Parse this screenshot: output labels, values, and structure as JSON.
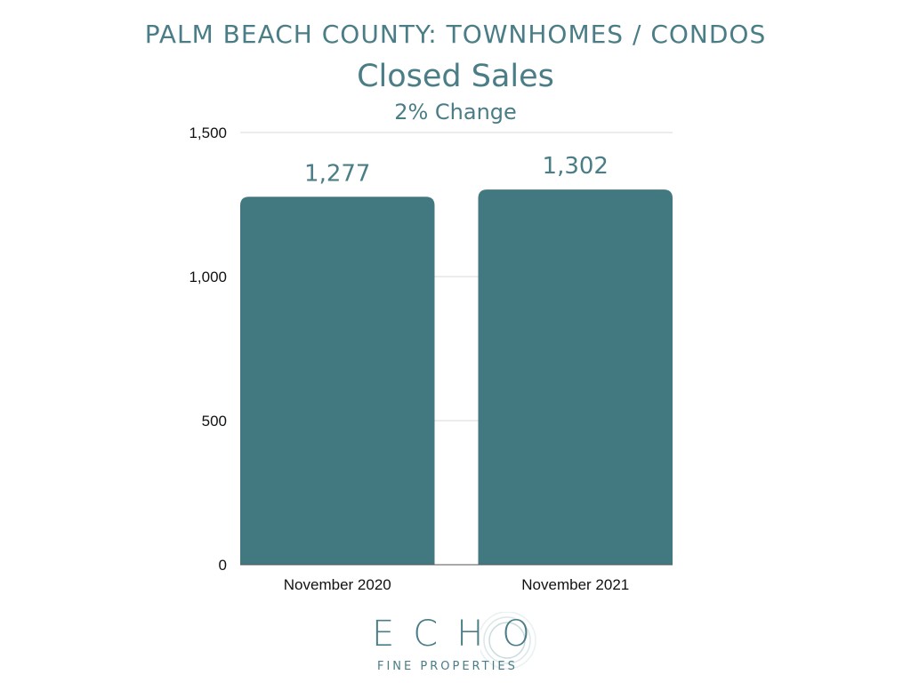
{
  "header": {
    "region": "PALM BEACH COUNTY: TOWNHOMES / CONDOS",
    "title": "Closed Sales",
    "subtitle": "2% Change"
  },
  "chart_data": {
    "type": "bar",
    "categories": [
      "November 2020",
      "November 2021"
    ],
    "values": [
      1277,
      1302
    ],
    "data_labels": [
      "1,277",
      "1,302"
    ],
    "yticks": [
      "0",
      "500",
      "1,000",
      "1,500"
    ],
    "ytick_values": [
      0,
      500,
      1000,
      1500
    ],
    "ylim": [
      0,
      1500
    ],
    "grid": true,
    "bar_color": "#427880",
    "label_color": "#4a7d86"
  },
  "logo": {
    "word": "ECHO",
    "tagline": "FINE PROPERTIES"
  }
}
